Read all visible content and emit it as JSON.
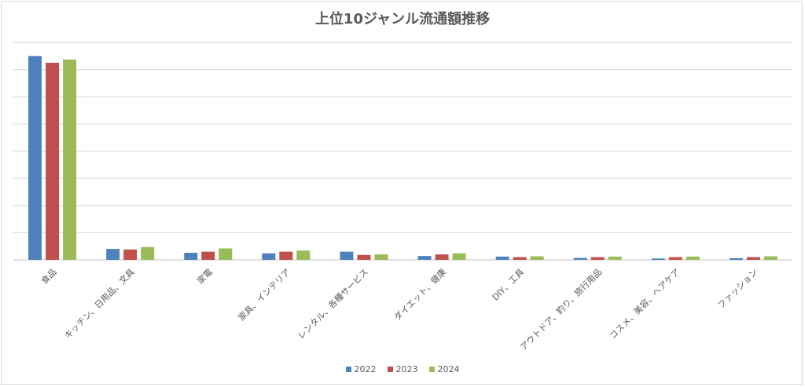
{
  "chart_data": {
    "type": "bar",
    "title": "上位10ジャンル流通額推移",
    "xlabel": "",
    "ylabel": "",
    "categories": [
      "食品",
      "キッチン、日用品、文具",
      "家電",
      "家具、インテリア",
      "レンタル、各種サービス",
      "ダイエット、健康",
      "DIY、工具",
      "アウトドア、釣り、旅行用品",
      "コスメ、美容、ヘアケア",
      "ファッション"
    ],
    "series": [
      {
        "name": "2022",
        "color": "#4f81bd",
        "values": [
          7.5,
          0.4,
          0.26,
          0.24,
          0.3,
          0.14,
          0.12,
          0.07,
          0.05,
          0.06
        ]
      },
      {
        "name": "2023",
        "color": "#c0504d",
        "values": [
          7.25,
          0.38,
          0.3,
          0.3,
          0.18,
          0.2,
          0.1,
          0.1,
          0.1,
          0.1
        ]
      },
      {
        "name": "2024",
        "color": "#9bbb59",
        "values": [
          7.37,
          0.47,
          0.42,
          0.34,
          0.2,
          0.24,
          0.13,
          0.12,
          0.12,
          0.13
        ]
      }
    ],
    "ylim": [
      0,
      8
    ],
    "grid": true,
    "y_tick_labels_shown": false,
    "legend_position": "bottom"
  }
}
